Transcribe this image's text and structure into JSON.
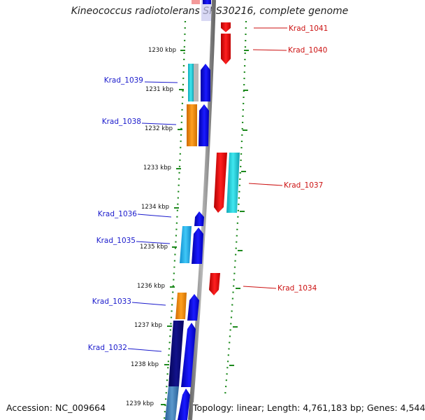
{
  "title": "Kineococcus radiotolerans SRS30216, complete genome",
  "footer": {
    "accession": "Accession: NC_009664",
    "topology": "Topology: linear; Length: 4,761,183 bp; Genes: 4,544"
  },
  "colors": {
    "backbone": "#8a8a8a",
    "tick": "#1e8a1e",
    "label_left": "#1a1acc",
    "label_right": "#cc1111",
    "blue": "#0b0bdd",
    "red": "#dd1111",
    "cyan": "#1ec8d8",
    "orange": "#ee8a0a",
    "navy": "#0b0b7a",
    "steel": "#3a78b0",
    "gray": "#b0b0b0"
  },
  "kbp_labels": [
    "1230 kbp",
    "1231 kbp",
    "1232 kbp",
    "1233 kbp",
    "1234 kbp",
    "1235 kbp",
    "1236 kbp",
    "1237 kbp",
    "1238 kbp",
    "1239 kbp"
  ],
  "genes_left": [
    {
      "label": "Krad_1039"
    },
    {
      "label": "Krad_1038"
    },
    {
      "label": "Krad_1036"
    },
    {
      "label": "Krad_1035"
    },
    {
      "label": "Krad_1033"
    },
    {
      "label": "Krad_1032"
    }
  ],
  "genes_right": [
    {
      "label": "Krad_1041"
    },
    {
      "label": "Krad_1040"
    },
    {
      "label": "Krad_1037"
    },
    {
      "label": "Krad_1034"
    }
  ]
}
